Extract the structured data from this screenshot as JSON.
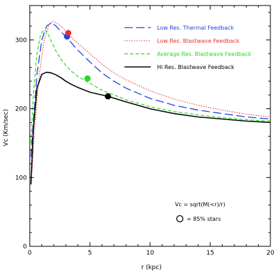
{
  "chart_data": {
    "type": "line",
    "title": "",
    "xlabel": "r (kpc)",
    "ylabel": "Vc (Km/sec)",
    "xlim": [
      0,
      20
    ],
    "ylim": [
      0,
      350
    ],
    "x_ticks": [
      0,
      5,
      10,
      15,
      20
    ],
    "y_ticks": [
      0,
      100,
      200,
      300
    ],
    "x_tick_labels": [
      "0",
      "5",
      "10",
      "15",
      "20"
    ],
    "y_tick_labels": [
      "0",
      "100",
      "200",
      "300"
    ],
    "grid": false,
    "legend_position": "top-right",
    "series": [
      {
        "name": "Low Res. Thermal Feedback",
        "color": "#1f3fdc",
        "dash": "long-dash",
        "x": [
          0.1,
          0.3,
          0.6,
          1.0,
          1.4,
          1.8,
          2.2,
          2.6,
          3.0,
          3.5,
          4.0,
          5.0,
          6.0,
          7.0,
          8.0,
          10.0,
          12.0,
          14.0,
          16.0,
          18.0,
          20.0
        ],
        "y": [
          130,
          180,
          250,
          300,
          320,
          325,
          320,
          312,
          305,
          295,
          285,
          268,
          252,
          240,
          230,
          215,
          205,
          198,
          193,
          188,
          185
        ],
        "marker": {
          "x": 3.1,
          "y": 305
        }
      },
      {
        "name": "Low Res. Blastwave Feedback",
        "color": "#e53030",
        "dash": "dotted",
        "x": [
          0.2,
          0.4,
          0.8,
          1.2,
          1.6,
          1.9,
          2.2,
          2.6,
          3.0,
          3.5,
          4.0,
          5.0,
          6.0,
          7.0,
          8.0,
          10.0,
          12.0,
          14.0,
          16.0,
          18.0,
          20.0
        ],
        "y": [
          110,
          170,
          250,
          300,
          322,
          327,
          325,
          320,
          313,
          303,
          295,
          280,
          265,
          252,
          242,
          226,
          214,
          205,
          198,
          192,
          188
        ],
        "marker": {
          "x": 3.2,
          "y": 310
        }
      },
      {
        "name": "Average Res. Blastwave Feedback",
        "color": "#22dd22",
        "dash": "short-dash",
        "x": [
          0.1,
          0.3,
          0.6,
          0.9,
          1.2,
          1.5,
          1.8,
          2.2,
          2.6,
          3.0,
          3.5,
          4.0,
          4.6,
          5.0,
          6.0,
          7.0,
          8.0,
          10.0,
          12.0,
          14.0,
          16.0,
          18.0,
          20.0
        ],
        "y": [
          150,
          220,
          280,
          308,
          315,
          310,
          298,
          283,
          272,
          263,
          254,
          247,
          241,
          237,
          227,
          220,
          213,
          203,
          196,
          191,
          187,
          184,
          182
        ],
        "marker": {
          "x": 4.8,
          "y": 244
        }
      },
      {
        "name": "Hi Res. Blastwave Feedback",
        "color": "#000000",
        "dash": "solid",
        "x": [
          0.1,
          0.3,
          0.6,
          1.0,
          1.4,
          1.8,
          2.2,
          2.6,
          3.0,
          3.5,
          4.0,
          5.0,
          6.0,
          6.5,
          8.0,
          10.0,
          12.0,
          14.0,
          16.0,
          18.0,
          20.0
        ],
        "y": [
          90,
          170,
          230,
          250,
          253,
          252,
          249,
          245,
          240,
          235,
          231,
          224,
          220,
          218,
          210,
          200,
          193,
          188,
          185,
          182,
          180
        ],
        "marker": {
          "x": 6.5,
          "y": 218
        }
      }
    ],
    "annotations": {
      "formula": "Vc = sqrt(M(<r)/r)",
      "marker_legend": "= 85% stars"
    }
  }
}
